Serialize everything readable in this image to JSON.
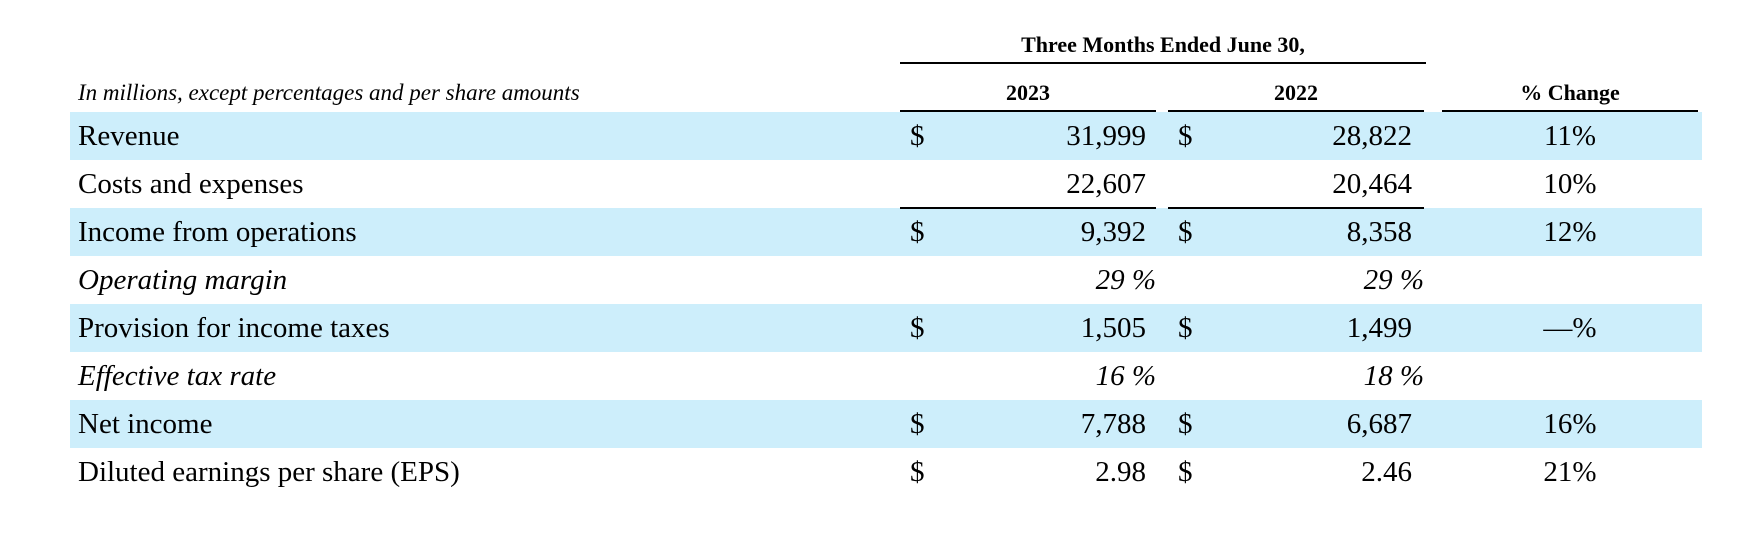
{
  "header": {
    "period": "Three Months Ended June 30,",
    "note": "In millions, except percentages and per share amounts",
    "columns": [
      "2023",
      "2022",
      "% Change"
    ]
  },
  "rows": [
    {
      "label": "Revenue",
      "shaded": true,
      "italic": false,
      "d1": "$",
      "v1": "31,999",
      "d2": "$",
      "v2": "28,822",
      "change": "11%"
    },
    {
      "label": "Costs and expenses",
      "shaded": false,
      "italic": false,
      "d1": "",
      "v1": "22,607",
      "d2": "",
      "v2": "20,464",
      "change": "10%"
    },
    {
      "label": "Income from operations",
      "shaded": true,
      "italic": false,
      "d1": "$",
      "v1": "9,392",
      "d2": "$",
      "v2": "8,358",
      "change": "12%"
    },
    {
      "label": "Operating margin",
      "shaded": false,
      "italic": true,
      "d1": "",
      "v1": "29 %",
      "d2": "",
      "v2": "29 %",
      "change": ""
    },
    {
      "label": "Provision for income taxes",
      "shaded": true,
      "italic": false,
      "d1": "$",
      "v1": "1,505",
      "d2": "$",
      "v2": "1,499",
      "change": "—%"
    },
    {
      "label": "Effective tax rate",
      "shaded": false,
      "italic": true,
      "d1": "",
      "v1": "16 %",
      "d2": "",
      "v2": "18 %",
      "change": ""
    },
    {
      "label": "Net income",
      "shaded": true,
      "italic": false,
      "d1": "$",
      "v1": "7,788",
      "d2": "$",
      "v2": "6,687",
      "change": "16%"
    },
    {
      "label": "Diluted earnings per share (EPS)",
      "shaded": false,
      "italic": false,
      "d1": "$",
      "v1": "2.98",
      "d2": "$",
      "v2": "2.46",
      "change": "21%"
    }
  ]
}
